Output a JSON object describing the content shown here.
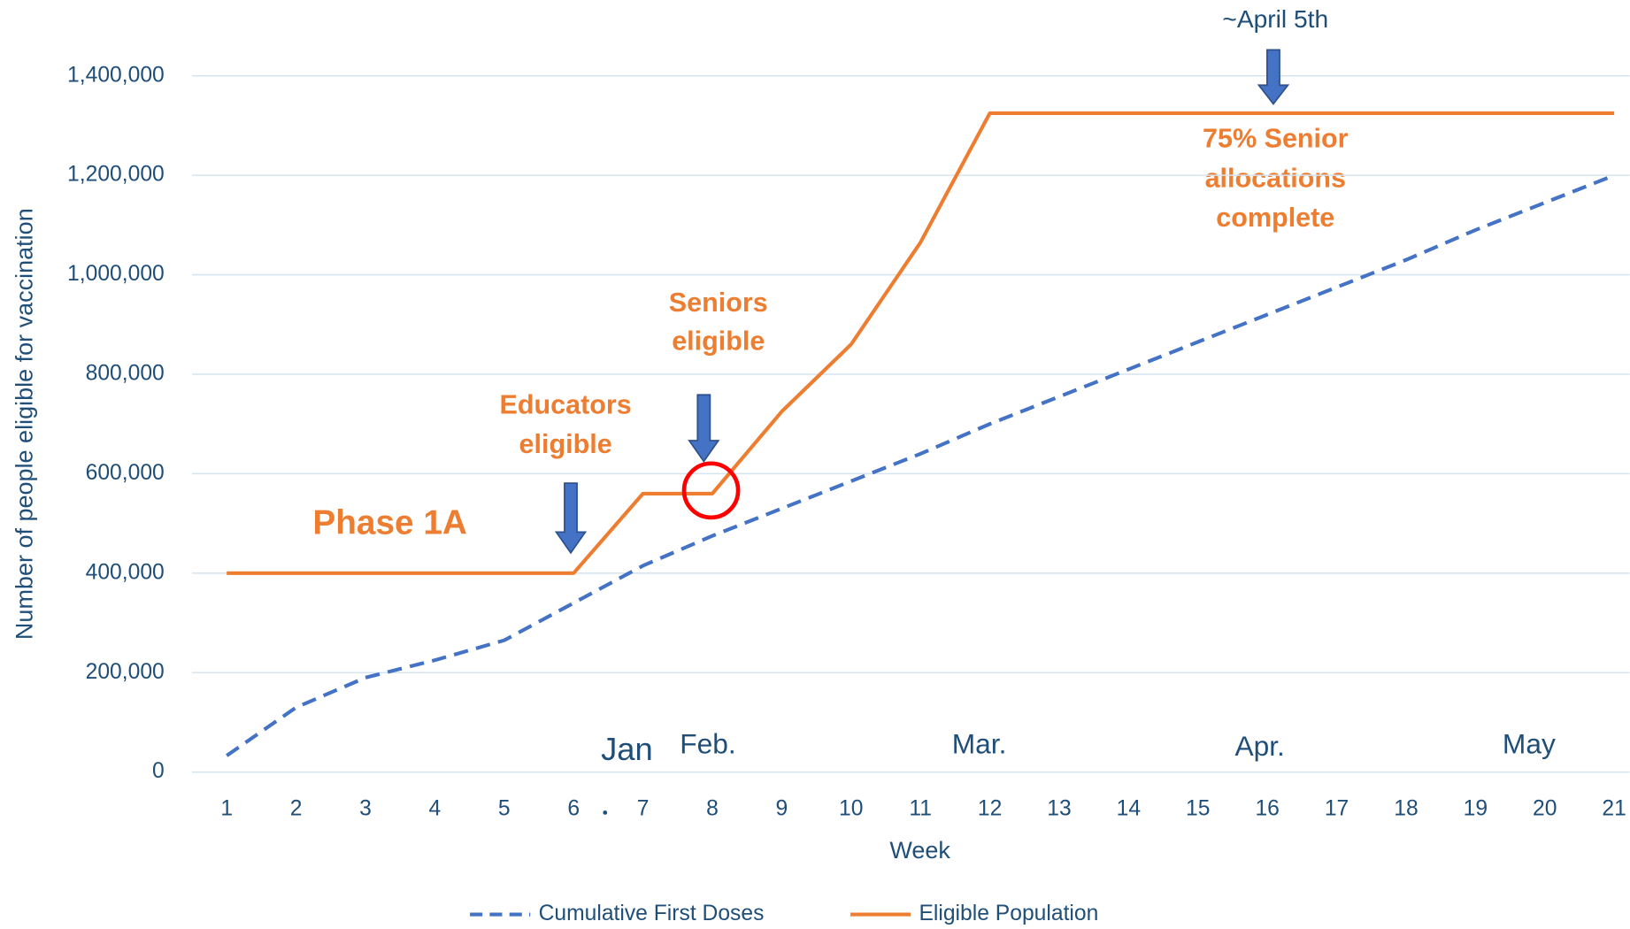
{
  "chart_data": {
    "type": "line",
    "x_label": "Week",
    "y_label": "Number of people eligible for vaccination",
    "categories": [
      "1",
      "2",
      "3",
      "4",
      "5",
      "6",
      "7",
      "8",
      "9",
      "10",
      "11",
      "12",
      "13",
      "14",
      "15",
      "16",
      "17",
      "18",
      "19",
      "20",
      "21"
    ],
    "series": [
      {
        "name": "Cumulative First Doses",
        "color": "#4472c4",
        "dash": true,
        "values": [
          33000,
          130000,
          190000,
          225000,
          265000,
          340000,
          415000,
          475000,
          530000,
          585000,
          640000,
          700000,
          755000,
          810000,
          865000,
          920000,
          975000,
          1030000,
          1090000,
          1145000,
          1200000
        ]
      },
      {
        "name": "Eligible Population",
        "color": "#ed7d31",
        "dash": false,
        "values": [
          400000,
          400000,
          400000,
          400000,
          400000,
          400000,
          560000,
          560000,
          725000,
          860000,
          1065000,
          1325000,
          1325000,
          1325000,
          1325000,
          1325000,
          1325000,
          1325000,
          1325000,
          1325000,
          1325000
        ]
      }
    ],
    "ylim": [
      0,
      1400000
    ],
    "yticks": [
      0,
      {
        "value": 200000,
        "label": "200,000"
      },
      {
        "value": 400000,
        "label": "400,000"
      },
      {
        "value": 600000,
        "label": "600,000"
      },
      {
        "value": 800000,
        "label": "800,000"
      },
      {
        "value": 1000000,
        "label": "1,000,000"
      },
      {
        "value": 1200000,
        "label": "1,200,000"
      },
      {
        "value": 1400000,
        "label": "1,400,000"
      }
    ],
    "grid": true,
    "legend": "bottom",
    "annotations": {
      "april": "~April 5th",
      "senior_complete": [
        "75% Senior",
        "allocations",
        "complete"
      ],
      "seniors": [
        "Seniors",
        "eligible"
      ],
      "educators": [
        "Educators",
        "eligible"
      ],
      "phase": "Phase 1A",
      "months": [
        "Jan",
        "Feb.",
        "Mar.",
        "Apr.",
        "May"
      ]
    }
  }
}
